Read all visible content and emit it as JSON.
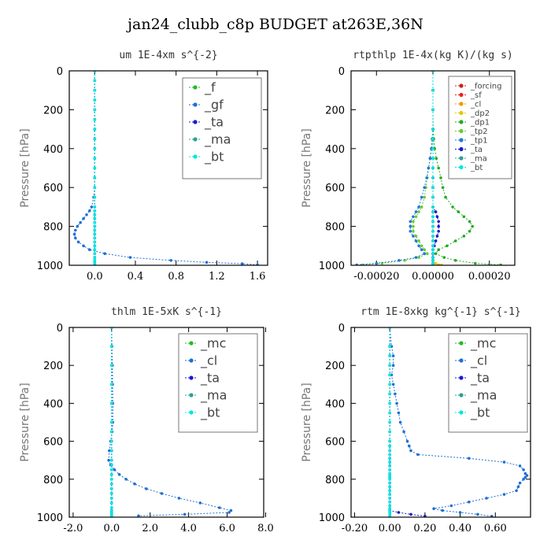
{
  "figure_title": "jan24_clubb_c8p  BUDGET at263E,36N",
  "chart_data": [
    {
      "type": "line",
      "title": "um  1E-4xm s^{-2}",
      "ylabel": "Pressure [hPa]",
      "ylim": [
        1000,
        0
      ],
      "yticks": [
        0,
        200,
        400,
        600,
        800,
        1000
      ],
      "xlim": [
        -0.25,
        1.7
      ],
      "xticks": [
        "0.0",
        "0.4",
        "0.8",
        "1.2",
        "1.6"
      ],
      "xtick_values": [
        0,
        0.4,
        0.8,
        1.2,
        1.6
      ],
      "legend_position": "top-right",
      "legend": [
        "_f",
        "_gf",
        "_ta",
        "_ma",
        "_bt"
      ],
      "y": [
        0,
        50,
        100,
        150,
        200,
        250,
        300,
        350,
        400,
        450,
        500,
        550,
        600,
        650,
        700,
        720,
        740,
        760,
        780,
        800,
        820,
        840,
        860,
        880,
        900,
        920,
        940,
        960,
        975,
        985,
        992,
        998
      ],
      "series": [
        {
          "name": "_f",
          "color": "#22bb22",
          "x": [
            0.0,
            0.0,
            0.0,
            0.0,
            0.0,
            0.0,
            0.0,
            0.0,
            0.0,
            0.0,
            0.0,
            0.0,
            0.0,
            0.0,
            0.0,
            0.0,
            0.0,
            0.0,
            0.0,
            0.0,
            0.0,
            0.0,
            0.0,
            0.0,
            0.0,
            0.0,
            0.0,
            0.0,
            0.0,
            0.0,
            0.0,
            0.0
          ]
        },
        {
          "name": "_gf",
          "color": "#1f6fd6",
          "x": [
            0.0,
            0.0,
            0.0,
            0.0,
            0.0,
            0.0,
            0.0,
            0.0,
            0.0,
            0.0,
            0.0,
            0.0,
            0.0,
            -0.01,
            -0.03,
            -0.05,
            -0.08,
            -0.11,
            -0.14,
            -0.17,
            -0.19,
            -0.2,
            -0.19,
            -0.16,
            -0.11,
            -0.05,
            0.1,
            0.35,
            0.75,
            1.1,
            1.45,
            1.6
          ]
        },
        {
          "name": "_ta",
          "color": "#1a1acc",
          "x": [
            0.0,
            0.0,
            0.0,
            0.0,
            0.0,
            0.0,
            0.0,
            0.0,
            0.0,
            0.0,
            0.0,
            0.0,
            0.0,
            0.0,
            0.0,
            0.0,
            0.0,
            0.0,
            0.0,
            0.0,
            0.0,
            0.0,
            0.0,
            0.0,
            0.0,
            0.0,
            0.0,
            0.0,
            0.0,
            0.0,
            0.0,
            0.0
          ]
        },
        {
          "name": "_ma",
          "color": "#2aa198",
          "x": [
            0.0,
            0.0,
            0.0,
            0.0,
            0.0,
            0.0,
            0.0,
            0.0,
            0.0,
            0.0,
            0.0,
            0.0,
            0.0,
            0.0,
            0.0,
            0.0,
            0.0,
            0.0,
            0.0,
            0.0,
            0.0,
            0.0,
            0.0,
            0.0,
            0.0,
            0.0,
            0.0,
            0.0,
            0.0,
            0.0,
            0.0,
            0.0
          ]
        },
        {
          "name": "_bt",
          "color": "#00e5e5",
          "x": [
            0.0,
            0.0,
            0.0,
            0.0,
            0.0,
            0.0,
            0.0,
            0.0,
            0.0,
            0.0,
            0.0,
            0.0,
            0.0,
            0.0,
            0.0,
            0.0,
            0.0,
            0.0,
            0.0,
            0.0,
            0.0,
            0.0,
            0.0,
            0.0,
            0.0,
            0.0,
            0.0,
            0.0,
            0.0,
            0.0,
            0.0,
            0.0
          ]
        }
      ]
    },
    {
      "type": "line",
      "title": "rtpthlp  1E-4x(kg K)/(kg s)",
      "ylabel": "Pressure [hPa]",
      "ylim": [
        1000,
        0
      ],
      "yticks": [
        0,
        200,
        400,
        600,
        800,
        1000
      ],
      "xlim": [
        -0.00029,
        0.00029
      ],
      "xticks": [
        "-0.00020",
        "0.00000",
        "0.00020"
      ],
      "xtick_values": [
        -0.0002,
        0,
        0.0002
      ],
      "legend_position": "top-right",
      "legend": [
        "_forcing",
        "_sf",
        "_cl",
        "_dp2",
        "_dp1",
        "_tp2",
        "_tp1",
        "_ta",
        "_ma",
        "_bt"
      ],
      "y": [
        0,
        100,
        200,
        300,
        350,
        400,
        450,
        500,
        550,
        600,
        650,
        700,
        725,
        750,
        775,
        800,
        825,
        850,
        875,
        900,
        920,
        940,
        960,
        975,
        990,
        998
      ],
      "series": [
        {
          "name": "_forcing",
          "color": "#cc2222",
          "x": [
            0,
            0,
            0,
            0,
            0,
            0,
            0,
            0,
            0,
            0,
            0,
            0,
            0,
            0,
            0,
            0,
            0,
            0,
            0,
            0,
            0,
            0,
            0,
            0,
            0,
            0
          ]
        },
        {
          "name": "_sf",
          "color": "#ee2222",
          "x": [
            0,
            0,
            0,
            0,
            0,
            0,
            0,
            0,
            0,
            0,
            0,
            0,
            0,
            0,
            0,
            0,
            0,
            0,
            0,
            0,
            0,
            0,
            0,
            0,
            0,
            0
          ]
        },
        {
          "name": "_cl",
          "color": "#ee9900",
          "x": [
            0,
            0,
            0,
            0,
            0,
            0,
            0,
            0,
            0,
            0,
            0,
            0,
            0,
            0,
            0,
            0,
            0,
            0,
            0,
            0,
            0,
            0,
            0,
            0,
            0,
            2e-05
          ]
        },
        {
          "name": "_dp2",
          "color": "#ddcc00",
          "x": [
            0,
            0,
            0,
            0,
            0,
            0,
            0,
            0,
            0,
            0,
            0,
            0,
            0,
            0,
            0,
            0,
            0,
            0,
            0,
            0,
            0,
            0,
            0,
            0,
            1e-05,
            3e-05
          ]
        },
        {
          "name": "_dp1",
          "color": "#22aa22",
          "x": [
            0,
            0,
            0,
            1e-06,
            3e-06,
            6e-06,
            1.2e-05,
            2e-05,
            2.8e-05,
            3.5e-05,
            4.5e-05,
            7e-05,
            9e-05,
            0.00011,
            0.00013,
            0.00014,
            0.00013,
            0.00011,
            8e-05,
            5e-05,
            2e-05,
            1e-05,
            4e-05,
            8e-05,
            0.00015,
            0.00024
          ]
        },
        {
          "name": "_tp2",
          "color": "#66cc33",
          "x": [
            0,
            0,
            0,
            0,
            -3e-06,
            -6e-06,
            -1e-05,
            -1.5e-05,
            -2e-05,
            -2.5e-05,
            -3e-05,
            -4e-05,
            -5e-05,
            -6e-05,
            -7e-05,
            -7e-05,
            -7e-05,
            -6e-05,
            -5e-05,
            -4e-05,
            -3e-05,
            -2e-05,
            -5e-05,
            -0.0001,
            -0.00018,
            -0.00025
          ]
        },
        {
          "name": "_tp1",
          "color": "#2277dd",
          "x": [
            0,
            0,
            0,
            0,
            -2e-06,
            -5e-06,
            -1e-05,
            -1.6e-05,
            -2.2e-05,
            -3e-05,
            -4e-05,
            -5e-05,
            -6e-05,
            -7e-05,
            -8e-05,
            -8e-05,
            -8e-05,
            -7e-05,
            -6e-05,
            -5e-05,
            -4e-05,
            -3e-05,
            -6e-05,
            -0.00012,
            -0.0002,
            -0.00027
          ]
        },
        {
          "name": "_ta",
          "color": "#1a1acc",
          "x": [
            0,
            0,
            0,
            0,
            0,
            0,
            0,
            0,
            0,
            0,
            0,
            0,
            1e-05,
            1.5e-05,
            2e-05,
            2e-05,
            2e-05,
            1.5e-05,
            1e-05,
            5e-06,
            0,
            0,
            0,
            0,
            0,
            0
          ]
        },
        {
          "name": "_ma",
          "color": "#2aa198",
          "x": [
            0,
            0,
            0,
            0,
            0,
            0,
            0,
            0,
            0,
            0,
            0,
            0,
            0,
            0,
            0,
            0,
            0,
            0,
            0,
            0,
            0,
            0,
            0,
            0,
            0,
            0
          ]
        },
        {
          "name": "_bt",
          "color": "#00e5e5",
          "x": [
            0,
            0,
            0,
            0,
            0,
            0,
            0,
            0,
            0,
            0,
            0,
            0,
            0,
            0,
            0,
            0,
            0,
            0,
            0,
            0,
            0,
            0,
            0,
            0,
            0,
            0
          ]
        }
      ]
    },
    {
      "type": "line",
      "title": "thlm  1E-5xK s^{-1}",
      "ylabel": "Pressure [hPa]",
      "ylim": [
        1000,
        0
      ],
      "yticks": [
        0,
        200,
        400,
        600,
        800,
        1000
      ],
      "xlim": [
        -2.2,
        7.9
      ],
      "xticks": [
        "-2.0",
        "0.0",
        "2.0",
        "4.0",
        "6.0",
        "8.0"
      ],
      "xtick_values": [
        -2,
        0,
        2,
        4,
        6,
        8
      ],
      "legend_position": "top-right",
      "legend": [
        "_mc",
        "_cl",
        "_ta",
        "_ma",
        "_bt"
      ],
      "y": [
        0,
        100,
        200,
        300,
        400,
        500,
        550,
        600,
        650,
        700,
        725,
        750,
        775,
        800,
        825,
        850,
        875,
        900,
        925,
        950,
        965,
        975,
        985,
        993
      ],
      "series": [
        {
          "name": "_mc",
          "color": "#22bb22",
          "x": [
            0,
            0,
            0,
            0,
            0,
            0,
            0,
            0,
            0,
            0,
            0,
            0,
            0,
            0,
            0,
            0,
            0,
            0,
            0,
            0,
            0,
            0,
            0,
            0
          ]
        },
        {
          "name": "_cl",
          "color": "#1f6fd6",
          "x": [
            0.0,
            0.02,
            0.04,
            0.05,
            0.06,
            0.06,
            0.03,
            -0.05,
            -0.12,
            -0.15,
            -0.05,
            0.15,
            0.4,
            0.75,
            1.2,
            1.8,
            2.6,
            3.5,
            4.6,
            5.6,
            6.2,
            6.1,
            3.8,
            1.4
          ]
        },
        {
          "name": "_ta",
          "color": "#1a1acc",
          "x": [
            0,
            0,
            0,
            0,
            0,
            0,
            0,
            0,
            0,
            0,
            0,
            0,
            0,
            0,
            0,
            0,
            0,
            0,
            0,
            0,
            0,
            0,
            0,
            0
          ]
        },
        {
          "name": "_ma",
          "color": "#2aa198",
          "x": [
            0,
            0,
            0,
            0,
            0,
            0,
            0,
            0,
            0,
            0,
            0,
            0,
            0,
            0,
            0,
            0,
            0,
            0,
            0,
            0,
            0,
            0,
            0,
            0
          ]
        },
        {
          "name": "_bt",
          "color": "#00e5e5",
          "x": [
            0,
            0,
            0,
            0,
            0,
            0,
            0,
            0,
            0,
            0,
            0,
            0,
            0,
            0,
            0,
            0,
            0,
            0,
            0,
            0,
            0,
            0,
            0,
            0
          ]
        }
      ]
    },
    {
      "type": "line",
      "title": "rtm  1E-8xkg kg^{-1} s^{-1}",
      "ylabel": "Pressure [hPa]",
      "ylim": [
        1000,
        0
      ],
      "yticks": [
        0,
        200,
        400,
        600,
        800,
        1000
      ],
      "xlim": [
        -0.22,
        0.8
      ],
      "xticks": [
        "-0.20",
        "0.00",
        "0.20",
        "0.40",
        "0.60"
      ],
      "xtick_values": [
        -0.2,
        0,
        0.2,
        0.4,
        0.6
      ],
      "legend_position": "top-right",
      "legend": [
        "_mc",
        "_cl",
        "_ta",
        "_ma",
        "_bt"
      ],
      "y": [
        0,
        100,
        150,
        200,
        250,
        300,
        350,
        400,
        450,
        500,
        550,
        600,
        625,
        650,
        670,
        690,
        710,
        730,
        750,
        770,
        780,
        790,
        800,
        820,
        840,
        860,
        880,
        900,
        920,
        940,
        955,
        965,
        975,
        985,
        995
      ],
      "series": [
        {
          "name": "_mc",
          "color": "#22bb22",
          "x": [
            0,
            0,
            0,
            0,
            0,
            0,
            0,
            0,
            0,
            0,
            0,
            0,
            0,
            0,
            0,
            0,
            0,
            0,
            0,
            0,
            0,
            0,
            0,
            0,
            0,
            0,
            0,
            0,
            0,
            0,
            0,
            0,
            0,
            0,
            0
          ]
        },
        {
          "name": "_cl",
          "color": "#1f6fd6",
          "x": [
            0.0,
            0.01,
            0.02,
            0.02,
            0.01,
            0.02,
            0.03,
            0.04,
            0.05,
            0.06,
            0.08,
            0.1,
            0.11,
            0.12,
            0.16,
            0.45,
            0.65,
            0.74,
            0.76,
            0.77,
            0.78,
            0.77,
            0.76,
            0.74,
            0.73,
            0.72,
            0.65,
            0.55,
            0.45,
            0.35,
            0.25,
            0.3,
            0.4,
            0.5,
            0.58
          ]
        },
        {
          "name": "_ta",
          "color": "#1a1acc",
          "x": [
            0,
            0,
            0,
            0,
            0,
            0,
            0,
            0,
            0,
            0,
            0,
            0,
            0,
            0,
            0,
            0,
            0,
            0,
            0,
            0,
            0,
            0,
            0,
            0,
            0,
            0,
            0,
            0,
            0,
            0,
            0,
            0,
            0.05,
            0.12,
            0.2
          ]
        },
        {
          "name": "_ma",
          "color": "#2aa198",
          "x": [
            0,
            0,
            0,
            0,
            0,
            0,
            0,
            0,
            0,
            0,
            0,
            0,
            0,
            0,
            0,
            0,
            0,
            0,
            0,
            0,
            0,
            0,
            0,
            0,
            0,
            0,
            0,
            0,
            0,
            0,
            0,
            0,
            0,
            0,
            0
          ]
        },
        {
          "name": "_bt",
          "color": "#00e5e5",
          "x": [
            0,
            0,
            0,
            0,
            0,
            0,
            0,
            0,
            0,
            0,
            0,
            0,
            0,
            0,
            0,
            0,
            0,
            0,
            0,
            0,
            0,
            0,
            0,
            0,
            0,
            0,
            0,
            0,
            0,
            0,
            0,
            0,
            0,
            0,
            0
          ]
        }
      ]
    }
  ]
}
